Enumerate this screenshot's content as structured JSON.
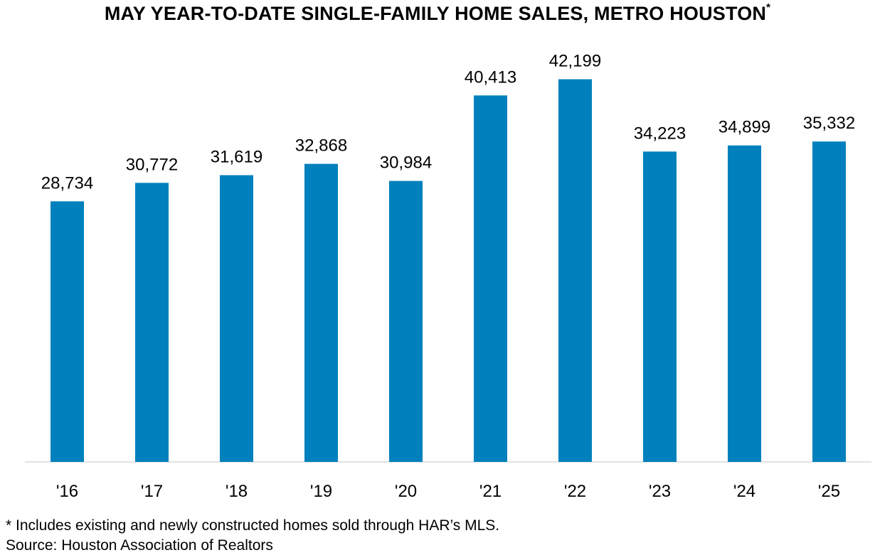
{
  "chart_data": {
    "type": "bar",
    "title": "MAY YEAR-TO-DATE SINGLE-FAMILY HOME SALES, METRO HOUSTON",
    "title_mark": "*",
    "categories": [
      "'16",
      "'17",
      "'18",
      "'19",
      "'20",
      "'21",
      "'22",
      "'23",
      "'24",
      "'25"
    ],
    "values": [
      28734,
      30772,
      31619,
      32868,
      30984,
      40413,
      42199,
      34223,
      34899,
      35332
    ],
    "value_labels": [
      "28,734",
      "30,772",
      "31,619",
      "32,868",
      "30,984",
      "40,413",
      "42,199",
      "34,223",
      "34,899",
      "35,332"
    ],
    "ylim": [
      0,
      46000
    ],
    "grid": false,
    "bar_color": "#0080BC"
  },
  "footnotes": {
    "note": "* Includes existing and newly constructed homes sold through HAR’s MLS.",
    "source": "Source: Houston Association of Realtors"
  }
}
